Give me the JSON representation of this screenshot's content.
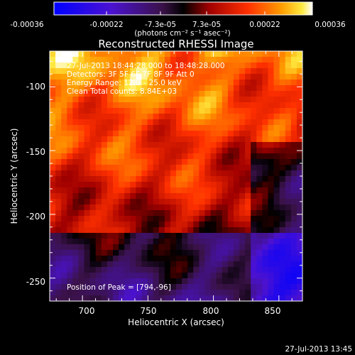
{
  "colorbar": {
    "ticks": [
      "-0.00036",
      "-0.00022",
      "-7.3e-05",
      "7.3e-05",
      "0.00022",
      "0.00036"
    ],
    "units": "(photons cm⁻² s⁻¹ asec⁻²)"
  },
  "chart_data": {
    "type": "heatmap",
    "title": "Reconstructed RHESSI Image",
    "xlabel": "Heliocentric X (arcsec)",
    "ylabel": "Heliocentric Y (arcsec)",
    "xlim": [
      675,
      868
    ],
    "ylim": [
      -268,
      -72
    ],
    "x_ticks": [
      700,
      750,
      800,
      850
    ],
    "y_ticks": [
      -100,
      -150,
      -200,
      -250
    ],
    "colorbar_range": [
      -0.00036,
      0.00036
    ],
    "colormap": "RHESSI blue-purple-red-yellow-white",
    "peak": [
      794,
      -96
    ],
    "annotations": {
      "time": "27-Jul-2013 18:44:28.000 to 18:48:28.000",
      "detectors": "Detectors: 3F 5F 6F 7F 8F 9F Att 0",
      "energy": "Energy Range: 12.0 – 25.0 keV",
      "clean": "Clean    Total counts: 8.84E+03",
      "peak_label": "Position of Peak = [794,-96]"
    }
  },
  "footer": {
    "timestamp": "27-Jul-2013 13:45"
  }
}
